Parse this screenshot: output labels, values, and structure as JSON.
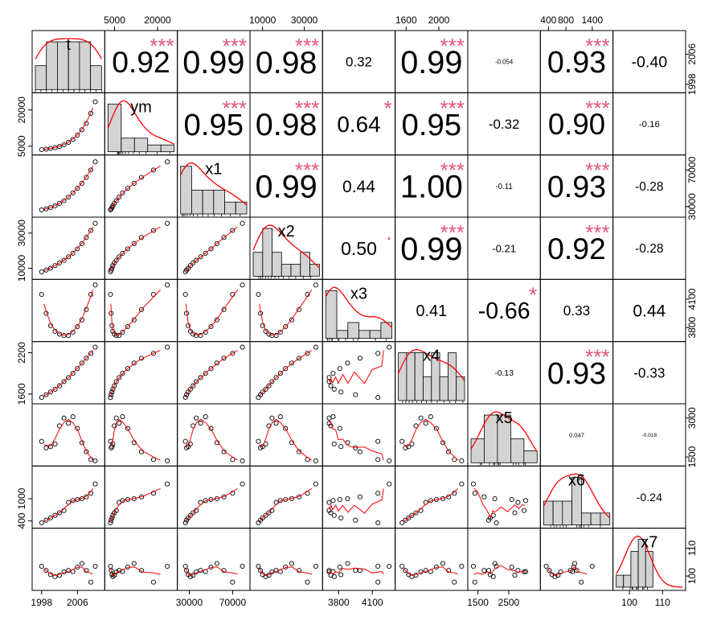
{
  "chart_data": {
    "type": "scatterplot-matrix",
    "variables": [
      "t",
      "ym",
      "x1",
      "x2",
      "x3",
      "x4",
      "x5",
      "x6",
      "x7"
    ],
    "ranges": {
      "t": [
        1996.6,
        2011.4
      ],
      "ym": [
        2700,
        25800
      ],
      "x1": [
        22000,
        83000
      ],
      "x2": [
        5500,
        37200
      ],
      "x3": [
        3685,
        4275
      ],
      "x4": [
        1505,
        2315
      ],
      "x5": [
        1275,
        3425
      ],
      "x6": [
        290,
        1800
      ],
      "x7": [
        96.0,
        116.0
      ]
    },
    "axis_ticks": {
      "top": [
        [
          "ym",
          [
            "5000",
            "20000"
          ]
        ],
        [
          "x2",
          [
            "10000",
            "30000"
          ]
        ],
        [
          "x4",
          [
            "1600",
            "2000"
          ]
        ],
        [
          "x6",
          [
            "400",
            "800",
            "1400"
          ]
        ]
      ],
      "bottom": [
        [
          "t",
          [
            "1998",
            "2006"
          ]
        ],
        [
          "x1",
          [
            "30000",
            "70000"
          ]
        ],
        [
          "x3",
          [
            "3800",
            "4100"
          ]
        ],
        [
          "x5",
          [
            "1500",
            "2500"
          ]
        ],
        [
          "x7",
          [
            "100",
            "110"
          ]
        ]
      ],
      "left": [
        [
          "ym",
          [
            "5000",
            "20000"
          ]
        ],
        [
          "x2",
          [
            "10000",
            "30000"
          ]
        ],
        [
          "x4",
          [
            "1600",
            "2200"
          ]
        ],
        [
          "x6",
          [
            "400",
            "1000"
          ]
        ]
      ],
      "right": [
        [
          "t",
          [
            "1998",
            "2006"
          ]
        ],
        [
          "x1",
          [
            "30000",
            "70000"
          ]
        ],
        [
          "x3",
          [
            "3800",
            "4100"
          ]
        ],
        [
          "x5",
          [
            "1500",
            "3000"
          ]
        ],
        [
          "x7",
          [
            "100",
            "110"
          ]
        ]
      ]
    },
    "data": {
      "t": [
        1998,
        1999,
        2000,
        2001,
        2002,
        2003,
        2004,
        2005,
        2006,
        2007,
        2008,
        2009,
        2010
      ],
      "ym": [
        3600,
        3800,
        4100,
        4400,
        4900,
        5600,
        6600,
        7800,
        9600,
        11800,
        14400,
        18600,
        23400
      ],
      "x1": [
        26500,
        27500,
        29000,
        31000,
        33500,
        36500,
        40500,
        45000,
        50000,
        55500,
        62000,
        70000,
        79000
      ],
      "x2": [
        8000,
        9000,
        10000,
        11500,
        13000,
        14500,
        16500,
        18500,
        21000,
        24000,
        27500,
        31500,
        35500
      ],
      "x3": [
        4150,
        3950,
        3820,
        3760,
        3730,
        3715,
        3715,
        3750,
        3810,
        3880,
        3990,
        4150,
        4250
      ],
      "x4": [
        1550,
        1590,
        1630,
        1670,
        1720,
        1780,
        1840,
        1900,
        1970,
        2050,
        2120,
        2190,
        2280
      ],
      "x5": [
        2100,
        1850,
        1900,
        2000,
        2700,
        3000,
        2800,
        3050,
        2600,
        2050,
        1700,
        1400,
        1350
      ],
      "x6": [
        350,
        420,
        480,
        550,
        620,
        680,
        900,
        950,
        980,
        1000,
        1050,
        1150,
        1400
      ],
      "x7": [
        103.5,
        102.0,
        100.5,
        99.8,
        100.3,
        101.5,
        102.0,
        101.6,
        103.2,
        104.5,
        102.0,
        97.8,
        103.5
      ]
    },
    "histograms": {
      "t": {
        "breaks": [
          1998,
          2000,
          2002,
          2004,
          2006,
          2008,
          2010
        ],
        "counts": [
          1,
          2,
          2,
          2,
          2,
          1
        ]
      },
      "ym": {
        "breaks": [
          0,
          5000,
          10000,
          15000,
          20000,
          25000
        ],
        "counts": [
          7,
          2,
          2,
          1,
          1
        ]
      },
      "x1": {
        "breaks": [
          25000,
          35000,
          45000,
          55000,
          65000,
          75000,
          85000
        ],
        "counts": [
          4,
          2,
          2,
          2,
          1,
          1
        ]
      },
      "x2": {
        "breaks": [
          5000,
          10000,
          15000,
          20000,
          25000,
          30000,
          35000,
          40000
        ],
        "counts": [
          2,
          4,
          2,
          1,
          1,
          2,
          1
        ]
      },
      "x3": {
        "breaks": [
          3700,
          3800,
          3900,
          4000,
          4100,
          4200,
          4300
        ],
        "counts": [
          6,
          1,
          2,
          1,
          1,
          2
        ]
      },
      "x4": {
        "breaks": [
          1500,
          1600,
          1700,
          1800,
          1900,
          2000,
          2100,
          2200,
          2300
        ],
        "counts": [
          2,
          2,
          2,
          1,
          2,
          1,
          2,
          1
        ]
      },
      "x5": {
        "breaks": [
          1000,
          1500,
          2000,
          2500,
          3000,
          3500
        ],
        "counts": [
          2,
          4,
          4,
          2,
          1
        ]
      },
      "x6": {
        "breaks": [
          200,
          400,
          600,
          800,
          1000,
          1200,
          1400,
          1600
        ],
        "counts": [
          2,
          2,
          2,
          4,
          1,
          1,
          1
        ]
      },
      "x7": {
        "breaks": [
          96,
          98,
          100,
          102,
          104,
          106,
          108,
          110,
          112,
          114
        ],
        "counts": [
          1,
          1,
          3,
          4,
          3,
          0,
          0,
          0,
          0
        ]
      }
    },
    "correlations": [
      {
        "row": 0,
        "col": 1,
        "value": "0.92",
        "stars": "***"
      },
      {
        "row": 0,
        "col": 2,
        "value": "0.99",
        "stars": "***"
      },
      {
        "row": 0,
        "col": 3,
        "value": "0.98",
        "stars": "***"
      },
      {
        "row": 0,
        "col": 4,
        "value": "0.32",
        "stars": ""
      },
      {
        "row": 0,
        "col": 5,
        "value": "0.99",
        "stars": "***"
      },
      {
        "row": 0,
        "col": 6,
        "value": "-0.054",
        "stars": ""
      },
      {
        "row": 0,
        "col": 7,
        "value": "0.93",
        "stars": "***"
      },
      {
        "row": 0,
        "col": 8,
        "value": "-0.40",
        "stars": ""
      },
      {
        "row": 1,
        "col": 2,
        "value": "0.95",
        "stars": "***"
      },
      {
        "row": 1,
        "col": 3,
        "value": "0.98",
        "stars": "***"
      },
      {
        "row": 1,
        "col": 4,
        "value": "0.64",
        "stars": "*"
      },
      {
        "row": 1,
        "col": 5,
        "value": "0.95",
        "stars": "***"
      },
      {
        "row": 1,
        "col": 6,
        "value": "-0.32",
        "stars": ""
      },
      {
        "row": 1,
        "col": 7,
        "value": "0.90",
        "stars": "***"
      },
      {
        "row": 1,
        "col": 8,
        "value": "-0.16",
        "stars": ""
      },
      {
        "row": 2,
        "col": 3,
        "value": "0.99",
        "stars": "***"
      },
      {
        "row": 2,
        "col": 4,
        "value": "0.44",
        "stars": ""
      },
      {
        "row": 2,
        "col": 5,
        "value": "1.00",
        "stars": "***"
      },
      {
        "row": 2,
        "col": 6,
        "value": "-0.11",
        "stars": ""
      },
      {
        "row": 2,
        "col": 7,
        "value": "0.93",
        "stars": "***"
      },
      {
        "row": 2,
        "col": 8,
        "value": "-0.28",
        "stars": ""
      },
      {
        "row": 3,
        "col": 4,
        "value": "0.50",
        "stars": "."
      },
      {
        "row": 3,
        "col": 5,
        "value": "0.99",
        "stars": "***"
      },
      {
        "row": 3,
        "col": 6,
        "value": "-0.21",
        "stars": ""
      },
      {
        "row": 3,
        "col": 7,
        "value": "0.92",
        "stars": "***"
      },
      {
        "row": 3,
        "col": 8,
        "value": "-0.28",
        "stars": ""
      },
      {
        "row": 4,
        "col": 5,
        "value": "0.41",
        "stars": ""
      },
      {
        "row": 4,
        "col": 6,
        "value": "-0.66",
        "stars": "*"
      },
      {
        "row": 4,
        "col": 7,
        "value": "0.33",
        "stars": ""
      },
      {
        "row": 4,
        "col": 8,
        "value": "0.44",
        "stars": ""
      },
      {
        "row": 5,
        "col": 6,
        "value": "-0.13",
        "stars": ""
      },
      {
        "row": 5,
        "col": 7,
        "value": "0.93",
        "stars": "***"
      },
      {
        "row": 5,
        "col": 8,
        "value": "-0.33",
        "stars": ""
      },
      {
        "row": 6,
        "col": 7,
        "value": "0.047",
        "stars": ""
      },
      {
        "row": 6,
        "col": 8,
        "value": "-0.018",
        "stars": ""
      },
      {
        "row": 7,
        "col": 8,
        "value": "-0.24",
        "stars": ""
      }
    ],
    "colors": {
      "histogram_fill": "#d3d3d3",
      "density_line": "#ff0000",
      "smooth_line": "#ff0000",
      "points": "#000000",
      "stars": "#e5557a"
    }
  }
}
